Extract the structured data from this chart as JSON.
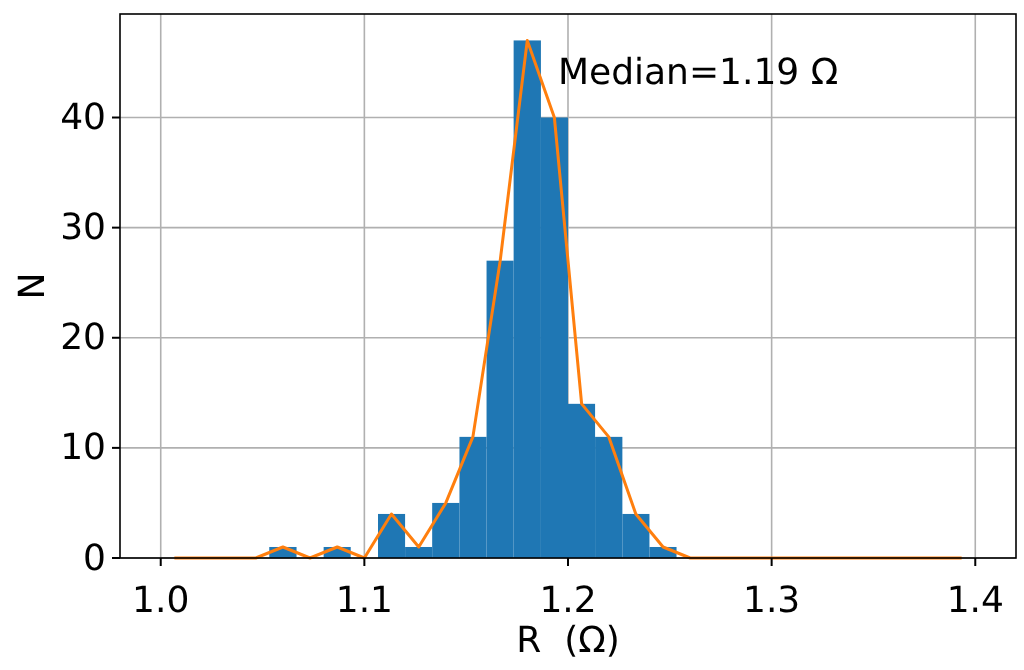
{
  "chart_data": {
    "type": "histogram",
    "xlabel": "R  (Ω)",
    "ylabel": "N",
    "annotations": [
      "Median=1.19 Ω"
    ],
    "xlim": [
      0.98,
      1.42
    ],
    "xticks": [
      {
        "value": 1,
        "label": "1.0"
      },
      1.1,
      1.2,
      1.3,
      1.4
    ],
    "ylim": [
      0,
      49.4
    ],
    "yticks": [
      0,
      10,
      20,
      30,
      40
    ],
    "grid": true,
    "series": [
      {
        "color": "#1f77b4",
        "bins": [
          1,
          1.0133,
          1.0267,
          1.04,
          1.0533,
          1.0667,
          1.08,
          1.0933,
          1.1067,
          1.12,
          1.1333,
          1.1467,
          1.16,
          1.1733,
          1.1867,
          1.2,
          1.2133,
          1.2267,
          1.24,
          1.2533,
          1.2667,
          1.28,
          1.2933,
          1.3067,
          1.32,
          1.3333,
          1.3467,
          1.36,
          1.3733,
          1.3867,
          1.4
        ],
        "values": [
          0,
          0,
          0,
          0,
          1,
          0,
          1,
          0,
          4,
          1,
          5,
          11,
          27,
          47,
          40,
          14,
          11,
          4,
          1,
          0,
          0,
          0,
          0,
          0,
          0,
          0,
          0,
          0,
          0,
          0
        ]
      },
      {
        "type": "line",
        "color": "#ff7f0e",
        "x": [
          1.0067,
          1.02,
          1.0333,
          1.0467,
          1.06,
          1.0733,
          1.0867,
          1.1,
          1.1133,
          1.1267,
          1.14,
          1.1533,
          1.1667,
          1.18,
          1.1933,
          1.2067,
          1.22,
          1.2333,
          1.2467,
          1.26,
          1.2733,
          1.2867,
          1.3,
          1.3133,
          1.3267,
          1.34,
          1.3533,
          1.3667,
          1.38,
          1.3933
        ],
        "values": [
          0,
          0,
          0,
          0,
          1,
          0,
          1,
          0,
          4,
          1,
          5,
          11,
          27,
          47,
          40,
          14,
          11,
          4,
          1,
          0,
          0,
          0,
          0,
          0,
          0,
          0,
          0,
          0,
          0,
          0
        ]
      }
    ]
  }
}
